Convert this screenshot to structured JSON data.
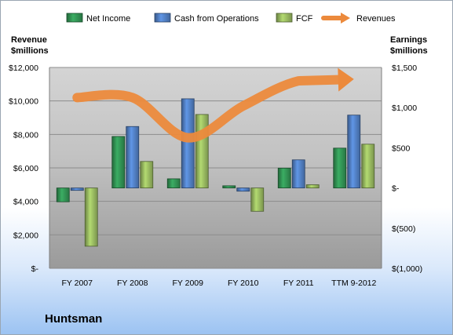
{
  "company": "Huntsman",
  "chart_data": {
    "type": "bar",
    "categories": [
      "FY 2007",
      "FY 2008",
      "FY 2009",
      "FY 2010",
      "FY 2011",
      "TTM 9-2012"
    ],
    "series": [
      {
        "name": "Net Income",
        "values": [
          -172,
          641,
          114,
          27,
          247,
          496
        ],
        "color": "#2f8a4f",
        "axis": "right"
      },
      {
        "name": "Cash from Operations",
        "values": [
          -30,
          765,
          1110,
          -40,
          350,
          907
        ],
        "color": "#4d78b8",
        "axis": "right"
      },
      {
        "name": "FCF",
        "values": [
          -725,
          330,
          915,
          -290,
          40,
          545
        ],
        "color": "#8fae5a",
        "axis": "right"
      },
      {
        "name": "Revenues",
        "values": [
          10200,
          10200,
          7800,
          9700,
          11200,
          11300
        ],
        "color": "#ec8a3c",
        "axis": "left",
        "style": "arrow-line"
      }
    ],
    "ylabel_left": "Revenue\n$millions",
    "ylabel_right": "Earnings\n$millions",
    "ylim_left": [
      0,
      12000
    ],
    "ylim_right": [
      -1000,
      1500
    ],
    "yticks_left": [
      "$-",
      "$2,000",
      "$4,000",
      "$6,000",
      "$8,000",
      "$10,000",
      "$12,000"
    ],
    "yticks_right": [
      "$(1,000)",
      "$(500)",
      "$-",
      "$500",
      "$1,000",
      "$1,500"
    ],
    "legend_position": "top",
    "grid": true
  }
}
